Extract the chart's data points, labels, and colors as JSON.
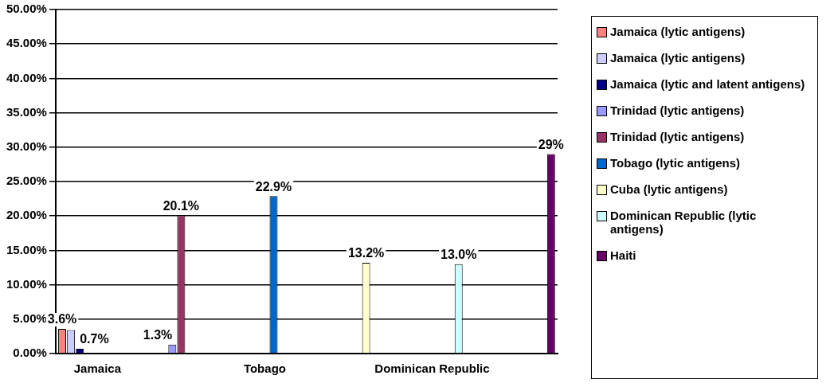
{
  "chart_data": {
    "type": "bar",
    "categories": [
      "Jamaica",
      null,
      "Tobago",
      null,
      "Dominican Republic",
      null
    ],
    "series": [
      {
        "name": "Jamaica (lytic antigens)",
        "color": "#ff8080",
        "values": [
          3.6,
          null,
          null,
          null,
          null,
          null
        ],
        "value_labels": [
          "3.6%",
          null,
          null,
          null,
          null,
          null
        ]
      },
      {
        "name": "Jamaica (lytic antigens)",
        "color": "#ccccff",
        "values": [
          3.4,
          null,
          null,
          null,
          null,
          null
        ],
        "value_labels": [
          null,
          null,
          null,
          null,
          null,
          null
        ]
      },
      {
        "name": "Jamaica (lytic and latent antigens)",
        "color": "#000080",
        "values": [
          0.7,
          null,
          null,
          null,
          null,
          null
        ],
        "value_labels": [
          "0.7%",
          null,
          null,
          null,
          null,
          null
        ]
      },
      {
        "name": "Trinidad (lytic antigens)",
        "color": "#9999ff",
        "values": [
          null,
          1.3,
          null,
          null,
          null,
          null
        ],
        "value_labels": [
          null,
          "1.3%",
          null,
          null,
          null,
          null
        ]
      },
      {
        "name": "Trinidad (lytic antigens)",
        "color": "#993366",
        "values": [
          null,
          20.1,
          null,
          null,
          null,
          null
        ],
        "value_labels": [
          null,
          "20.1%",
          null,
          null,
          null,
          null
        ]
      },
      {
        "name": "Tobago (lytic antigens)",
        "color": "#0066cc",
        "values": [
          null,
          null,
          22.9,
          null,
          null,
          null
        ],
        "value_labels": [
          null,
          null,
          "22.9%",
          null,
          null,
          null
        ]
      },
      {
        "name": "Cuba (lytic antigens)",
        "color": "#ffffcc",
        "values": [
          null,
          null,
          null,
          13.2,
          null,
          null
        ],
        "value_labels": [
          null,
          null,
          null,
          "13.2%",
          null,
          null
        ]
      },
      {
        "name": "Dominican Republic (lytic antigens)",
        "color": "#ccffff",
        "values": [
          null,
          null,
          null,
          null,
          13.0,
          null
        ],
        "value_labels": [
          null,
          null,
          null,
          null,
          "13.0%",
          null
        ]
      },
      {
        "name": "Haiti",
        "color": "#660066",
        "values": [
          null,
          null,
          null,
          null,
          null,
          29
        ],
        "value_labels": [
          null,
          null,
          null,
          null,
          null,
          "29%"
        ]
      }
    ],
    "ylim": [
      0,
      50
    ],
    "yticks": [
      {
        "value": 0,
        "label": "0.00%"
      },
      {
        "value": 5,
        "label": "5.00%"
      },
      {
        "value": 10,
        "label": "10.00%"
      },
      {
        "value": 15,
        "label": "15.00%"
      },
      {
        "value": 20,
        "label": "20.00%"
      },
      {
        "value": 25,
        "label": "25.00%"
      },
      {
        "value": 30,
        "label": "30.00%"
      },
      {
        "value": 35,
        "label": "35.00%"
      },
      {
        "value": 40,
        "label": "40.00%"
      },
      {
        "value": 45,
        "label": "45.00%"
      },
      {
        "value": 50,
        "label": "50.00%"
      }
    ],
    "grid": "y",
    "legend": "right"
  }
}
